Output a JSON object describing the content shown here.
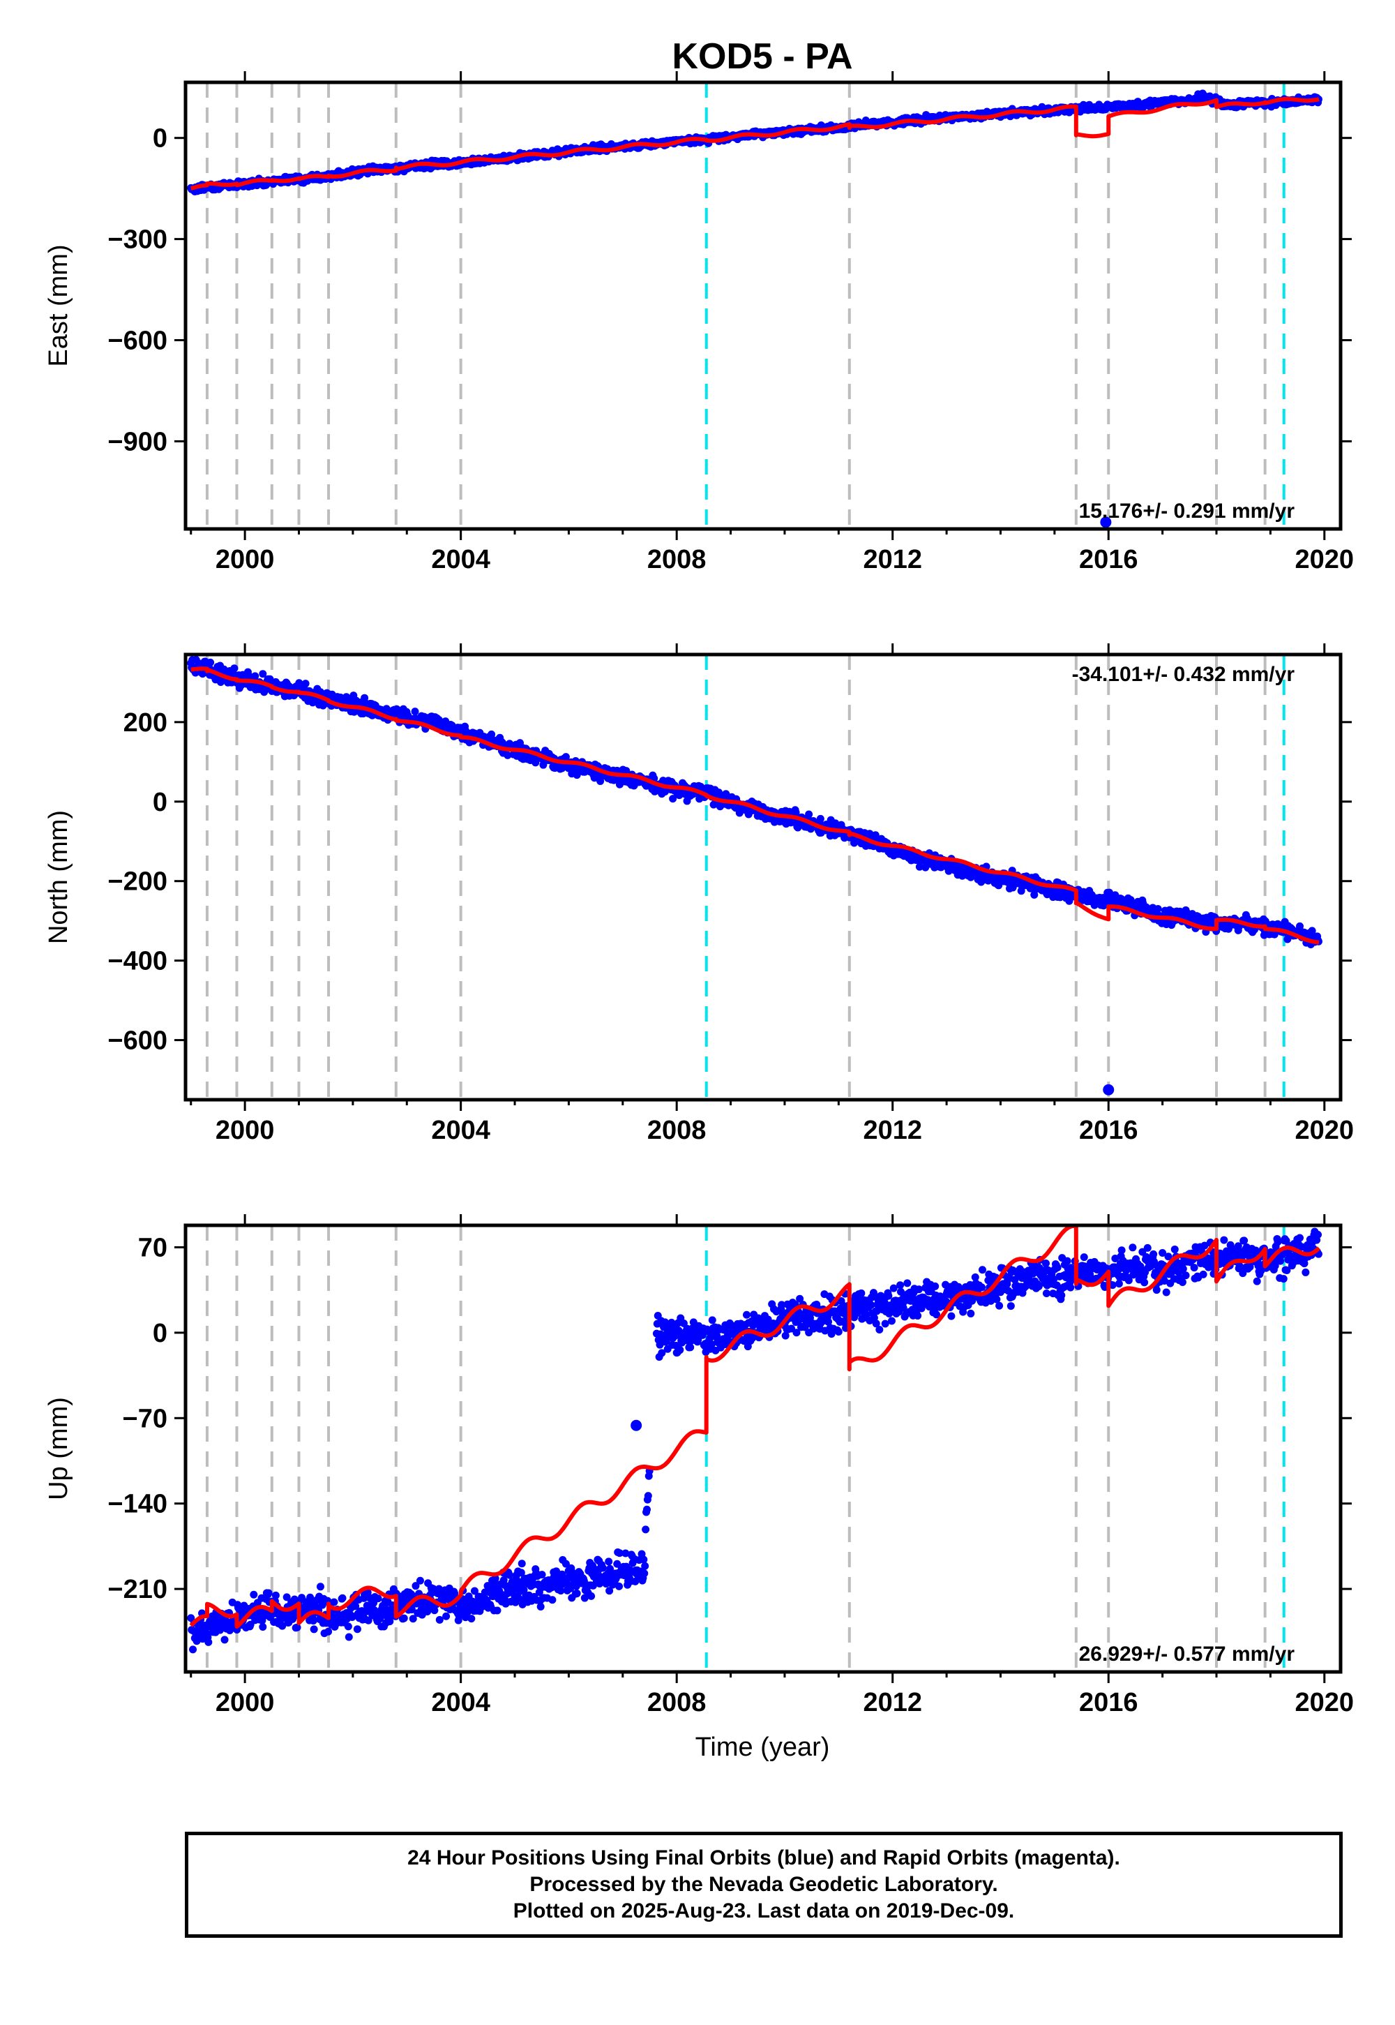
{
  "title": "KOD5 - PA",
  "xlabel": "Time (year)",
  "footer": {
    "line1": "24 Hour Positions Using Final Orbits (blue) and Rapid Orbits (magenta).",
    "line2": "Processed by the Nevada Geodetic Laboratory.",
    "line3": "Plotted on 2025-Aug-23. Last data on 2019-Dec-09."
  },
  "colors": {
    "data": "#0000ff",
    "model": "#ff0000",
    "event_gray": "#bdbdbd",
    "event_cyan": "#00e5ee"
  },
  "chart_data": [
    {
      "type": "scatter",
      "panel": "east",
      "ylabel": "East (mm)",
      "xlim": [
        1998.9,
        2020.3
      ],
      "ylim": [
        -1160,
        165
      ],
      "yticks": [
        0,
        -300,
        -600,
        -900
      ],
      "xticks": [
        2000,
        2004,
        2008,
        2012,
        2016,
        2020
      ],
      "rate_label": "15.176+/- 0.291 mm/yr",
      "rate_position": "bottom-right",
      "event_lines_gray": [
        1999.3,
        1999.85,
        2000.5,
        2001.0,
        2001.55,
        2002.8,
        2004.0,
        2011.2,
        2015.4,
        2016.0,
        2018.0,
        2018.9
      ],
      "event_lines_cyan": [
        2008.55,
        2019.25
      ],
      "series_data": {
        "x": [
          1999.0,
          1999.5,
          2000.0,
          2000.5,
          2001.0,
          2001.5,
          2002.0,
          2002.5,
          2003.0,
          2003.5,
          2004.0,
          2004.5,
          2005.0,
          2005.5,
          2006.0,
          2006.5,
          2007.0,
          2007.5,
          2008.0,
          2008.5,
          2009.0,
          2009.5,
          2010.0,
          2010.5,
          2011.0,
          2011.5,
          2012.0,
          2012.5,
          2013.0,
          2013.5,
          2014.0,
          2014.5,
          2015.0,
          2015.5,
          2016.0,
          2016.5,
          2017.0,
          2017.5,
          2017.8,
          2018.2,
          2018.5,
          2019.0,
          2019.5,
          2019.9
        ],
        "y": [
          -152,
          -142,
          -136,
          -128,
          -122,
          -114,
          -104,
          -94,
          -86,
          -78,
          -72,
          -66,
          -58,
          -48,
          -40,
          -33,
          -26,
          -18,
          -10,
          -4,
          4,
          12,
          18,
          24,
          30,
          40,
          46,
          54,
          60,
          66,
          72,
          78,
          82,
          88,
          92,
          98,
          105,
          112,
          122,
          96,
          102,
          106,
          110,
          114
        ]
      },
      "outliers": [
        {
          "x": 2015.95,
          "y": -1140
        }
      ],
      "model": {
        "x": [
          1999.0,
          1999.3,
          1999.3,
          1999.85,
          1999.85,
          2000.5,
          2000.5,
          2001.0,
          2001.0,
          2001.55,
          2001.55,
          2002.8,
          2002.8,
          2004.0,
          2004.0,
          2008.55,
          2008.55,
          2011.2,
          2011.2,
          2015.4,
          2015.4,
          2016.0,
          2016.0,
          2018.0,
          2018.0,
          2018.9,
          2018.9,
          2019.9
        ],
        "y": [
          -150,
          -145,
          -140,
          -132,
          -136,
          -127,
          -125,
          -120,
          -122,
          -114,
          -112,
          -92,
          -88,
          -72,
          -72,
          -4,
          -6,
          36,
          30,
          90,
          8,
          12,
          64,
          112,
          92,
          108,
          106,
          118
        ]
      }
    },
    {
      "type": "scatter",
      "panel": "north",
      "ylabel": "North (mm)",
      "xlim": [
        1998.9,
        2020.3
      ],
      "ylim": [
        -750,
        370
      ],
      "yticks": [
        200,
        0,
        -200,
        -400,
        -600
      ],
      "xticks": [
        2000,
        2004,
        2008,
        2012,
        2016,
        2020
      ],
      "rate_label": "-34.101+/- 0.432 mm/yr",
      "rate_position": "top-right",
      "event_lines_gray": [
        1999.3,
        1999.85,
        2000.5,
        2001.0,
        2001.55,
        2002.8,
        2004.0,
        2011.2,
        2015.4,
        2016.0,
        2018.0,
        2018.9
      ],
      "event_lines_cyan": [
        2008.55,
        2019.25
      ],
      "series_data": {
        "x": [
          1999.0,
          1999.5,
          2000.0,
          2000.5,
          2001.0,
          2001.5,
          2002.0,
          2002.5,
          2003.0,
          2003.5,
          2004.0,
          2004.5,
          2005.0,
          2005.5,
          2006.0,
          2006.5,
          2007.0,
          2007.5,
          2008.0,
          2008.5,
          2009.0,
          2009.5,
          2010.0,
          2010.5,
          2011.0,
          2011.5,
          2012.0,
          2012.5,
          2013.0,
          2013.5,
          2014.0,
          2014.5,
          2015.0,
          2015.5,
          2016.0,
          2016.5,
          2017.0,
          2017.5,
          2018.0,
          2018.5,
          2019.0,
          2019.5,
          2019.9
        ],
        "y": [
          345,
          325,
          308,
          292,
          276,
          260,
          244,
          228,
          212,
          196,
          172,
          150,
          128,
          112,
          92,
          78,
          62,
          46,
          32,
          18,
          -2,
          -20,
          -38,
          -56,
          -72,
          -92,
          -124,
          -140,
          -158,
          -176,
          -192,
          -208,
          -222,
          -236,
          -250,
          -262,
          -290,
          -296,
          -310,
          -304,
          -318,
          -332,
          -348
        ]
      },
      "outliers": [
        {
          "x": 2016.0,
          "y": -725
        }
      ],
      "model": {
        "x": [
          1999.0,
          1999.3,
          1999.3,
          1999.85,
          1999.85,
          2000.5,
          2000.5,
          2001.0,
          2001.0,
          2001.55,
          2001.55,
          2002.8,
          2002.8,
          2004.0,
          2004.0,
          2008.55,
          2008.55,
          2011.2,
          2011.2,
          2015.4,
          2015.4,
          2016.0,
          2016.0,
          2018.0,
          2018.0,
          2018.9,
          2018.9,
          2019.9
        ],
        "y": [
          332,
          330,
          328,
          310,
          308,
          290,
          288,
          276,
          274,
          256,
          254,
          210,
          208,
          166,
          162,
          18,
          16,
          -80,
          -84,
          -226,
          -256,
          -296,
          -264,
          -320,
          -298,
          -312,
          -318,
          -352
        ]
      }
    },
    {
      "type": "scatter",
      "panel": "up",
      "ylabel": "Up (mm)",
      "xlim": [
        1998.9,
        2020.3
      ],
      "ylim": [
        -278,
        88
      ],
      "yticks": [
        70,
        0,
        -70,
        -140,
        -210
      ],
      "xticks": [
        2000,
        2004,
        2008,
        2012,
        2016,
        2020
      ],
      "rate_label": "26.929+/- 0.577 mm/yr",
      "rate_position": "bottom-right",
      "event_lines_gray": [
        1999.3,
        1999.85,
        2000.5,
        2001.0,
        2001.55,
        2002.8,
        2004.0,
        2011.2,
        2015.4,
        2016.0,
        2018.0,
        2018.9
      ],
      "event_lines_cyan": [
        2008.55,
        2019.25
      ],
      "series_data": {
        "x": [
          1999.0,
          1999.4,
          1999.8,
          2000.2,
          2000.6,
          2001.0,
          2001.4,
          2001.8,
          2002.2,
          2002.6,
          2003.0,
          2003.4,
          2003.8,
          2004.2,
          2004.6,
          2005.0,
          2005.4,
          2005.8,
          2006.2,
          2006.6,
          2007.0,
          2007.4,
          2007.6,
          2008.0,
          2008.4,
          2008.8,
          2009.2,
          2009.6,
          2010.0,
          2010.4,
          2010.8,
          2011.2,
          2011.6,
          2012.0,
          2012.4,
          2012.8,
          2013.2,
          2013.6,
          2014.0,
          2014.4,
          2014.8,
          2015.2,
          2015.6,
          2016.0,
          2016.4,
          2016.8,
          2017.2,
          2017.6,
          2018.0,
          2018.4,
          2018.8,
          2019.2,
          2019.6,
          2019.9
        ],
        "y": [
          -248,
          -242,
          -236,
          -230,
          -228,
          -232,
          -226,
          -234,
          -224,
          -230,
          -222,
          -220,
          -218,
          -226,
          -214,
          -206,
          -210,
          -202,
          -206,
          -198,
          -196,
          -194,
          -2,
          -4,
          -2,
          -6,
          0,
          6,
          10,
          14,
          12,
          16,
          20,
          24,
          28,
          26,
          30,
          34,
          38,
          42,
          46,
          44,
          48,
          46,
          52,
          50,
          55,
          58,
          60,
          62,
          58,
          62,
          66,
          70
        ]
      },
      "outliers": [
        {
          "x": 2007.25,
          "y": -76
        }
      ],
      "model": {
        "x": [
          1999.0,
          1999.3,
          1999.3,
          1999.85,
          1999.85,
          2000.5,
          2000.5,
          2001.0,
          2001.0,
          2001.55,
          2001.55,
          2002.8,
          2002.8,
          2004.0,
          2004.0,
          2008.55,
          2008.55,
          2011.2,
          2011.2,
          2015.4,
          2015.4,
          2016.0,
          2016.0,
          2018.0,
          2018.0,
          2018.9,
          2018.9,
          2019.9
        ],
        "y": [
          -240,
          -238,
          -228,
          -226,
          -236,
          -228,
          -220,
          -222,
          -238,
          -232,
          -222,
          -210,
          -227,
          -215,
          -212,
          -80,
          -20,
          34,
          -30,
          84,
          40,
          50,
          22,
          76,
          42,
          72,
          58,
          73
        ]
      }
    }
  ]
}
